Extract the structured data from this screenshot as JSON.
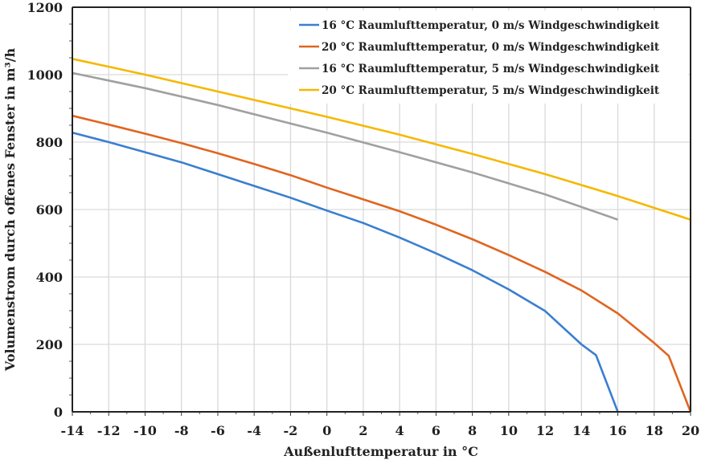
{
  "chart_data": {
    "type": "line",
    "title": "",
    "xlabel": "Außenlufttemperatur in °C",
    "ylabel": "Volumenstrom durch offenes Fenster in m³/h",
    "xlim": [
      -14,
      20
    ],
    "ylim": [
      0,
      1200
    ],
    "xticks": [
      -14,
      -12,
      -10,
      -8,
      -6,
      -4,
      -2,
      0,
      2,
      4,
      6,
      8,
      10,
      12,
      14,
      16,
      18,
      20
    ],
    "yticks": [
      0,
      200,
      400,
      600,
      800,
      1000,
      1200
    ],
    "grid": true,
    "legend_position": "top-right",
    "series": [
      {
        "name": "16 °C Raumlufttemperatur, 0 m/s Windgeschwindigkeit",
        "color": "#3a7fcf",
        "x": [
          -14,
          -12,
          -10,
          -8,
          -6,
          -4,
          -2,
          0,
          2,
          4,
          6,
          8,
          10,
          12,
          14,
          14.8,
          16
        ],
        "y": [
          828,
          800,
          770,
          740,
          705,
          670,
          635,
          597,
          560,
          517,
          470,
          420,
          363,
          299,
          200,
          168,
          0
        ]
      },
      {
        "name": "20 °C Raumlufttemperatur, 0 m/s Windgeschwindigkeit",
        "color": "#e0651f",
        "x": [
          -14,
          -12,
          -10,
          -8,
          -6,
          -4,
          -2,
          0,
          2,
          4,
          6,
          8,
          10,
          12,
          14,
          16,
          18,
          18.8,
          20
        ],
        "y": [
          878,
          852,
          825,
          797,
          767,
          735,
          702,
          665,
          630,
          595,
          555,
          512,
          465,
          415,
          360,
          292,
          204,
          166,
          0
        ]
      },
      {
        "name": "16 °C Raumlufttemperatur, 5 m/s Windgeschwindigkeit",
        "color": "#a0a0a0",
        "x": [
          -14,
          -10,
          -6,
          -2,
          0,
          4,
          8,
          12,
          16
        ],
        "y": [
          1005,
          960,
          910,
          855,
          828,
          770,
          710,
          645,
          570
        ]
      },
      {
        "name": "20 °C Raumlufttemperatur, 5 m/s Windgeschwindigkeit",
        "color": "#f5b800",
        "x": [
          -14,
          -10,
          -6,
          -2,
          0,
          4,
          8,
          12,
          16,
          20
        ],
        "y": [
          1047,
          1000,
          950,
          900,
          875,
          822,
          765,
          705,
          640,
          570
        ]
      }
    ]
  }
}
